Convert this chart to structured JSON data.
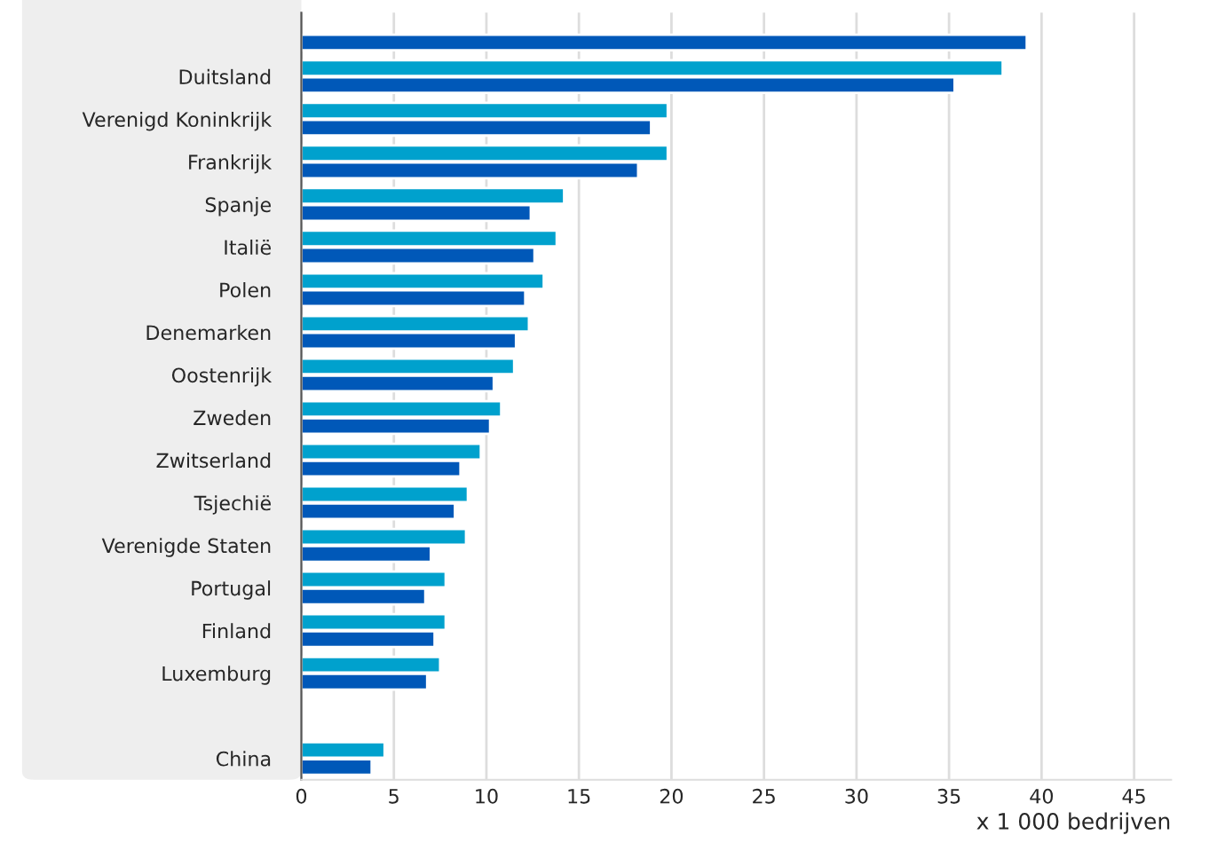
{
  "chart_data": {
    "type": "bar",
    "orientation": "horizontal",
    "categories": [
      null,
      "Duitsland",
      "Verenigd Koninkrijk",
      "Frankrijk",
      "Spanje",
      "Italië",
      "Polen",
      "Denemarken",
      "Oostenrijk",
      "Zweden",
      "Zwitserland",
      "Tsjechië",
      "Verenigde Staten",
      "Portugal",
      "Finland",
      "Luxemburg",
      null,
      "China"
    ],
    "series": [
      {
        "color": "#00a1cd",
        "values": [
          null,
          37.9,
          19.8,
          19.8,
          14.2,
          13.8,
          13.1,
          12.3,
          11.5,
          10.8,
          9.7,
          9.0,
          8.9,
          7.8,
          7.8,
          7.5,
          null,
          4.5
        ]
      },
      {
        "color": "#0058b8",
        "values": [
          39.2,
          35.3,
          18.9,
          18.2,
          12.4,
          12.6,
          12.1,
          11.6,
          10.4,
          10.2,
          8.6,
          8.3,
          7.0,
          6.7,
          7.2,
          6.8,
          null,
          3.8
        ]
      }
    ],
    "xlim": [
      0,
      47
    ],
    "xticks": [
      0,
      5,
      10,
      15,
      20,
      25,
      30,
      35,
      40,
      45
    ],
    "xlabel": "x 1 000 bedrijven",
    "grid": "x"
  }
}
